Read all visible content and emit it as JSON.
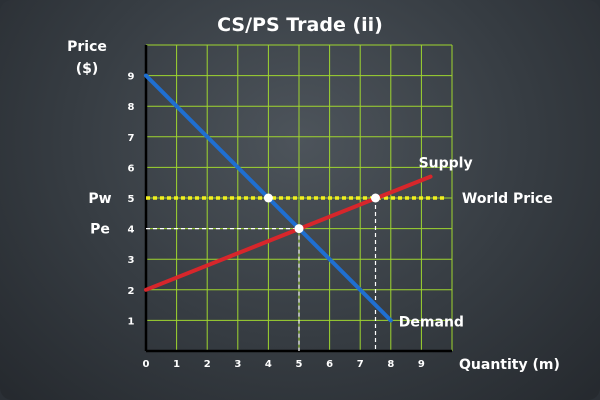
{
  "chart_data": {
    "type": "line",
    "title": "CS/PS Trade (ii)",
    "ylabel_line1": "Price",
    "ylabel_line2": "($)",
    "xlabel": "Quantity (m)",
    "xlim": [
      0,
      10
    ],
    "ylim": [
      0,
      10
    ],
    "x_ticks": [
      0,
      1,
      2,
      3,
      4,
      5,
      6,
      7,
      8,
      9
    ],
    "y_ticks": [
      1,
      2,
      3,
      4,
      5,
      6,
      7,
      8,
      9
    ],
    "grid": true,
    "series": [
      {
        "name": "Supply",
        "color": "#d7262b",
        "points": [
          [
            0,
            2
          ],
          [
            9.3,
            5.7
          ]
        ]
      },
      {
        "name": "Demand",
        "color": "#1f6fd1",
        "points": [
          [
            0,
            9
          ],
          [
            8,
            1
          ]
        ]
      }
    ],
    "world_price": {
      "name": "World Price",
      "y": 5,
      "x_range": [
        0,
        9.8
      ],
      "color": "#f2ef1e"
    },
    "price_labels": [
      {
        "text": "Pw",
        "y": 5
      },
      {
        "text": "Pe",
        "y": 4
      }
    ],
    "points": [
      {
        "name": "demand-at-world-price",
        "x": 4,
        "y": 5
      },
      {
        "name": "equilibrium",
        "x": 5,
        "y": 4
      },
      {
        "name": "supply-at-world-price",
        "x": 7.5,
        "y": 5
      }
    ],
    "guides": [
      {
        "name": "pe-horizontal-guide",
        "from": [
          0,
          4
        ],
        "to": [
          5,
          4
        ]
      },
      {
        "name": "qe-vertical-guide",
        "from": [
          5,
          4
        ],
        "to": [
          5,
          0
        ]
      },
      {
        "name": "supply-world-vertical-guide",
        "from": [
          7.5,
          5
        ],
        "to": [
          7.5,
          0
        ]
      }
    ],
    "colors": {
      "grid": "#9fd62f",
      "axis": "#000000",
      "text": "#ffffff",
      "point": "#ffffff"
    }
  }
}
